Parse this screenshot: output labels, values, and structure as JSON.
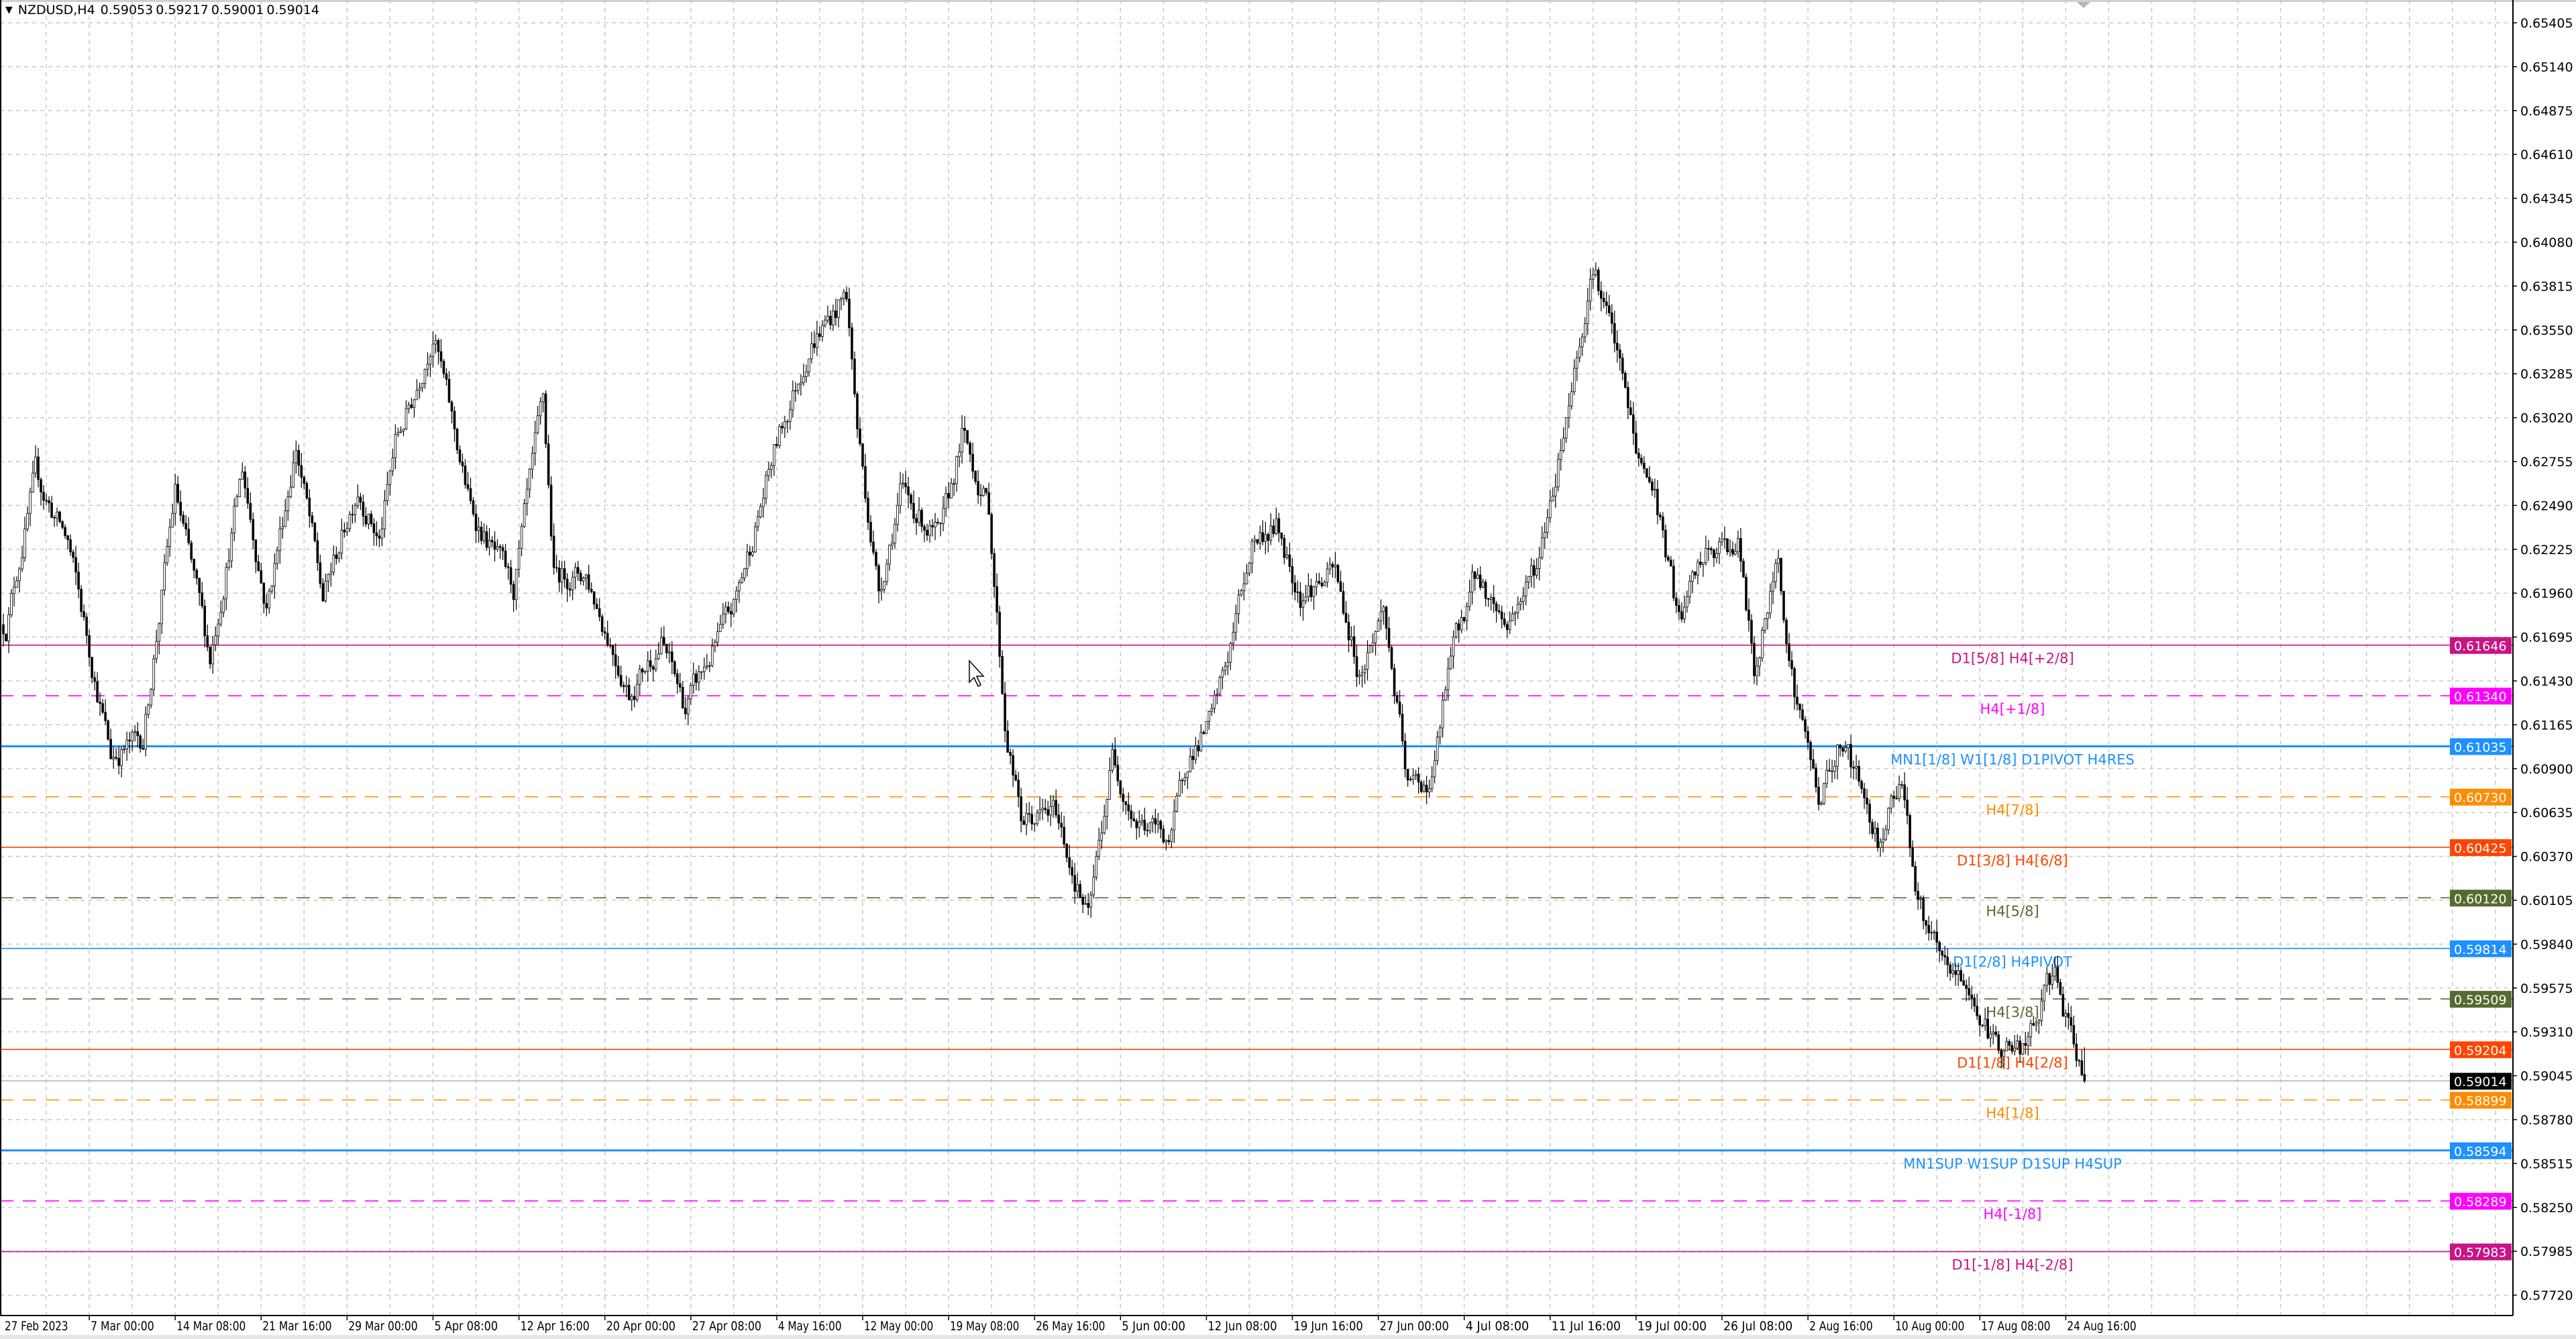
{
  "header": {
    "symbol_timeframe": "NZDUSD,H4",
    "open": "0.59053",
    "high": "0.59217",
    "low": "0.59001",
    "close": "0.59014",
    "menu_icon": "triangle-down-icon"
  },
  "price_axis": {
    "ticks": [
      "0.65405",
      "0.65140",
      "0.64875",
      "0.64610",
      "0.64345",
      "0.64080",
      "0.63815",
      "0.63550",
      "0.63285",
      "0.63020",
      "0.62755",
      "0.62490",
      "0.62225",
      "0.61960",
      "0.61695",
      "0.61430",
      "0.61165",
      "0.60900",
      "0.60635",
      "0.60370",
      "0.60105",
      "0.59840",
      "0.59575",
      "0.59310",
      "0.59045",
      "0.58780",
      "0.58515",
      "0.58250",
      "0.57985",
      "0.57720"
    ]
  },
  "time_axis": {
    "ticks": [
      "27 Feb 2023",
      "7 Mar 00:00",
      "14 Mar 08:00",
      "21 Mar 16:00",
      "29 Mar 00:00",
      "5 Apr 08:00",
      "12 Apr 16:00",
      "20 Apr 00:00",
      "27 Apr 08:00",
      "4 May 16:00",
      "12 May 00:00",
      "19 May 08:00",
      "26 May 16:00",
      "5 Jun 00:00",
      "12 Jun 08:00",
      "19 Jun 16:00",
      "27 Jun 00:00",
      "4 Jul 08:00",
      "11 Jul 16:00",
      "19 Jul 00:00",
      "26 Jul 08:00",
      "2 Aug 16:00",
      "10 Aug 00:00",
      "17 Aug 08:00",
      "24 Aug 16:00"
    ]
  },
  "levels": [
    {
      "price": "0.61646",
      "label": "D1[5/8] H4[+2/8]",
      "color": "#c71585",
      "style": "solid"
    },
    {
      "price": "0.61340",
      "label": "H4[+1/8]",
      "color": "#ff00ff",
      "style": "dashed"
    },
    {
      "price": "0.61035",
      "label": "MN1[1/8] W1[1/8] D1PIVOT H4RES",
      "color": "#1e90ff",
      "style": "solid-thick"
    },
    {
      "price": "0.60730",
      "label": "H4[7/8]",
      "color": "#ff8c00",
      "style": "dashed"
    },
    {
      "price": "0.60425",
      "label": "D1[3/8] H4[6/8]",
      "color": "#ff4500",
      "style": "solid"
    },
    {
      "price": "0.60120",
      "label": "H4[5/8]",
      "color": "#556b2f",
      "style": "dashed"
    },
    {
      "price": "0.59814",
      "label": "D1[2/8] H4PIVOT",
      "color": "#1e90ff",
      "style": "solid"
    },
    {
      "price": "0.59509",
      "label": "H4[3/8]",
      "color": "#556b2f",
      "style": "dashed"
    },
    {
      "price": "0.59204",
      "label": "D1[1/8] H4[2/8]",
      "color": "#ff4500",
      "style": "solid"
    },
    {
      "price": "0.58899",
      "label": "H4[1/8]",
      "color": "#ff8c00",
      "style": "dashed"
    },
    {
      "price": "0.58594",
      "label": "MN1SUP W1SUP D1SUP H4SUP",
      "color": "#1e90ff",
      "style": "solid-thick"
    },
    {
      "price": "0.58289",
      "label": "H4[-1/8]",
      "color": "#ff00ff",
      "style": "dashed"
    },
    {
      "price": "0.57983",
      "label": "D1[-1/8] H4[-2/8]",
      "color": "#c71585",
      "style": "solid"
    }
  ],
  "current_price": {
    "price": "0.59014",
    "color": "#000000"
  },
  "chart_data": {
    "type": "candlestick",
    "symbol": "NZDUSD",
    "timeframe": "H4",
    "ylim": [
      0.5772,
      0.65405
    ],
    "grid": true,
    "bar_count": 776,
    "approx_close_path_bar_price": [
      [
        1,
        0.6177
      ],
      [
        12,
        0.6266
      ],
      [
        24,
        0.6227
      ],
      [
        40,
        0.6098
      ],
      [
        52,
        0.6108
      ],
      [
        64,
        0.6257
      ],
      [
        77,
        0.6157
      ],
      [
        89,
        0.6271
      ],
      [
        98,
        0.6187
      ],
      [
        109,
        0.6286
      ],
      [
        119,
        0.6192
      ],
      [
        132,
        0.6262
      ],
      [
        140,
        0.6227
      ],
      [
        146,
        0.6286
      ],
      [
        153,
        0.6316
      ],
      [
        160,
        0.6356
      ],
      [
        165,
        0.6316
      ],
      [
        174,
        0.6247
      ],
      [
        190,
        0.6197
      ],
      [
        201,
        0.6311
      ],
      [
        205,
        0.6207
      ],
      [
        217,
        0.6207
      ],
      [
        233,
        0.6137
      ],
      [
        245,
        0.6167
      ],
      [
        254,
        0.6127
      ],
      [
        263,
        0.6157
      ],
      [
        272,
        0.6187
      ],
      [
        288,
        0.6286
      ],
      [
        300,
        0.6346
      ],
      [
        314,
        0.6376
      ],
      [
        318,
        0.6296
      ],
      [
        326,
        0.6197
      ],
      [
        334,
        0.6257
      ],
      [
        349,
        0.6227
      ],
      [
        357,
        0.6291
      ],
      [
        367,
        0.6247
      ],
      [
        373,
        0.6118
      ],
      [
        379,
        0.6058
      ],
      [
        392,
        0.6063
      ],
      [
        404,
        0.5998
      ],
      [
        413,
        0.6098
      ],
      [
        422,
        0.6058
      ],
      [
        435,
        0.6048
      ],
      [
        441,
        0.6098
      ],
      [
        450,
        0.6118
      ],
      [
        456,
        0.6157
      ],
      [
        465,
        0.6227
      ],
      [
        474,
        0.6237
      ],
      [
        483,
        0.6197
      ],
      [
        496,
        0.6207
      ],
      [
        505,
        0.6147
      ],
      [
        514,
        0.6187
      ],
      [
        523,
        0.6078
      ],
      [
        532,
        0.6083
      ],
      [
        539,
        0.6157
      ],
      [
        548,
        0.6207
      ],
      [
        560,
        0.6177
      ],
      [
        572,
        0.6217
      ],
      [
        581,
        0.6296
      ],
      [
        592,
        0.6396
      ],
      [
        600,
        0.6346
      ],
      [
        609,
        0.6276
      ],
      [
        615,
        0.6257
      ],
      [
        624,
        0.6177
      ],
      [
        633,
        0.6217
      ],
      [
        646,
        0.6227
      ],
      [
        652,
        0.6147
      ],
      [
        661,
        0.6217
      ],
      [
        667,
        0.6137
      ],
      [
        676,
        0.6073
      ],
      [
        685,
        0.6108
      ],
      [
        698,
        0.6048
      ],
      [
        707,
        0.6088
      ],
      [
        713,
        0.6008
      ],
      [
        722,
        0.5968
      ],
      [
        731,
        0.5959
      ],
      [
        741,
        0.5924
      ],
      [
        753,
        0.5919
      ],
      [
        764,
        0.5968
      ],
      [
        770,
        0.5924
      ],
      [
        775,
        0.5901
      ]
    ],
    "last_bar": {
      "open": 0.59053,
      "high": 0.59217,
      "low": 0.59001,
      "close": 0.59014
    }
  }
}
